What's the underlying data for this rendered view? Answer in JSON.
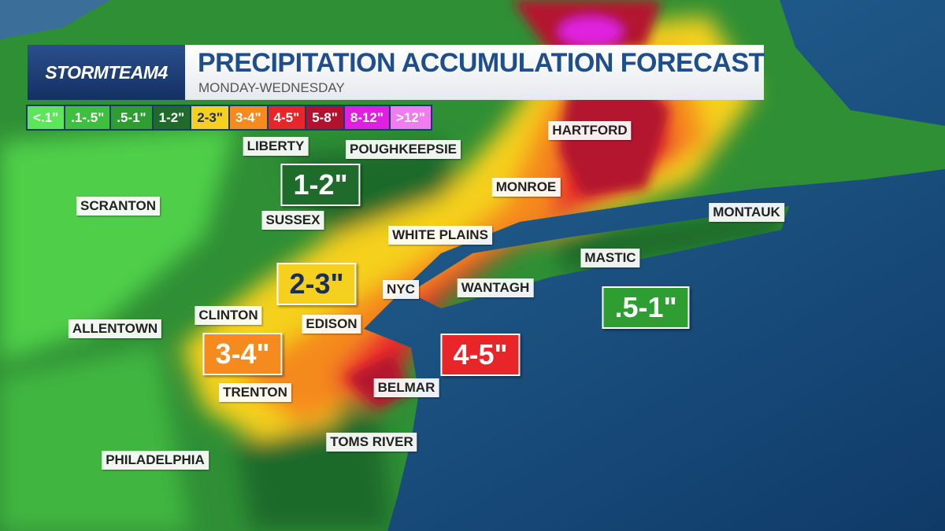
{
  "header": {
    "logo": "STORMTEAM4",
    "title": "PRECIPITATION ACCUMULATION FORECAST",
    "subtitle": "MONDAY-WEDNESDAY"
  },
  "legend": [
    {
      "label": "<.1\"",
      "color": "#5ee65a"
    },
    {
      "label": ".1-.5\"",
      "color": "#3fbf3f"
    },
    {
      "label": ".5-1\"",
      "color": "#2f9e32"
    },
    {
      "label": "1-2\"",
      "color": "#1e6b2c"
    },
    {
      "label": "2-3\"",
      "color": "#f5d01e"
    },
    {
      "label": "3-4\"",
      "color": "#f58a1f"
    },
    {
      "label": "4-5\"",
      "color": "#e8262a"
    },
    {
      "label": "5-8\"",
      "color": "#b3122e"
    },
    {
      "label": "8-12\"",
      "color": "#e020e0"
    },
    {
      "label": ">12\"",
      "color": "#f07cf0"
    }
  ],
  "cities": [
    "LIBERTY",
    "POUGHKEEPSIE",
    "HARTFORD",
    "SCRANTON",
    "MONROE",
    "SUSSEX",
    "MONTAUK",
    "WHITE PLAINS",
    "MASTIC",
    "NYC",
    "WANTAGH",
    "CLINTON",
    "EDISON",
    "ALLENTOWN",
    "TRENTON",
    "BELMAR",
    "TOMS RIVER",
    "PHILADELPHIA"
  ],
  "callouts": [
    {
      "label": "1-2\"",
      "color": "#1e6b2c"
    },
    {
      "label": "2-3\"",
      "color": "#f5d01e"
    },
    {
      "label": "3-4\"",
      "color": "#f58a1f"
    },
    {
      "label": "4-5\"",
      "color": "#e8262a"
    },
    {
      "label": ".5-1\"",
      "color": "#2f9e32"
    }
  ]
}
